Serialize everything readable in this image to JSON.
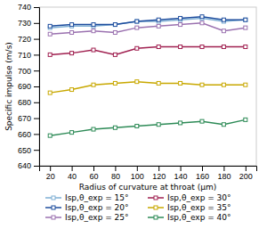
{
  "chart_data": {
    "type": "line",
    "x": [
      20,
      40,
      60,
      80,
      100,
      120,
      140,
      160,
      180,
      200
    ],
    "series": [
      {
        "name": "Isp,θ_exp = 15°",
        "color": "#7fafd4",
        "values": [
          727,
          728,
          728,
          729,
          731,
          731,
          732,
          733,
          731,
          732
        ]
      },
      {
        "name": "Isp,θ_exp = 20°",
        "color": "#1f4e9e",
        "values": [
          728,
          729,
          729,
          729,
          731,
          732,
          733,
          734,
          732,
          732
        ]
      },
      {
        "name": "Isp,θ_exp = 25°",
        "color": "#9b72b0",
        "values": [
          723,
          724,
          725,
          724,
          727,
          728,
          729,
          730,
          725,
          727
        ]
      },
      {
        "name": "Isp,θ_exp = 30°",
        "color": "#a02050",
        "values": [
          710,
          711,
          713,
          710,
          714,
          715,
          715,
          715,
          715,
          715
        ]
      },
      {
        "name": "Isp,θ_exp = 35°",
        "color": "#c8a800",
        "values": [
          686,
          688,
          691,
          692,
          693,
          692,
          692,
          691,
          691,
          691
        ]
      },
      {
        "name": "Isp,θ_exp = 40°",
        "color": "#2e8b57",
        "values": [
          659,
          661,
          663,
          664,
          665,
          666,
          667,
          668,
          666,
          669
        ]
      }
    ],
    "xlabel": "Radius of curvature at throat (μm)",
    "ylabel": "Specific impulse (m/s)",
    "xlim": [
      10,
      210
    ],
    "ylim": [
      640,
      740
    ],
    "xticks": [
      20,
      40,
      60,
      80,
      100,
      120,
      140,
      160,
      180,
      200
    ],
    "yticks": [
      640,
      650,
      660,
      670,
      680,
      690,
      700,
      710,
      720,
      730,
      740
    ],
    "grid": false,
    "legend": "bottom",
    "marker": "square"
  }
}
